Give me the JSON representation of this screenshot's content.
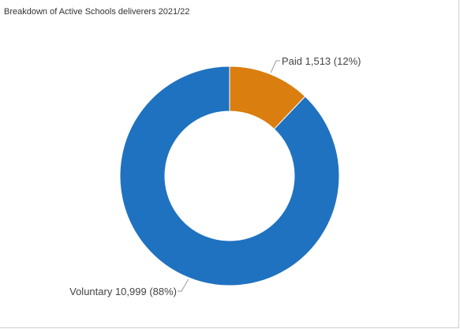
{
  "chart_data": {
    "type": "pie",
    "title": "Breakdown of Active Schools deliverers 2021/22",
    "donut": true,
    "start_angle_deg": 0,
    "direction": "clockwise",
    "slices": [
      {
        "label": "Paid",
        "value": 1513,
        "value_label": "1,513",
        "percent_label": "12%",
        "color": "#d97e0f"
      },
      {
        "label": "Voluntary",
        "value": 10999,
        "value_label": "10,999",
        "percent_label": "88%",
        "color": "#1f72c0"
      }
    ]
  }
}
